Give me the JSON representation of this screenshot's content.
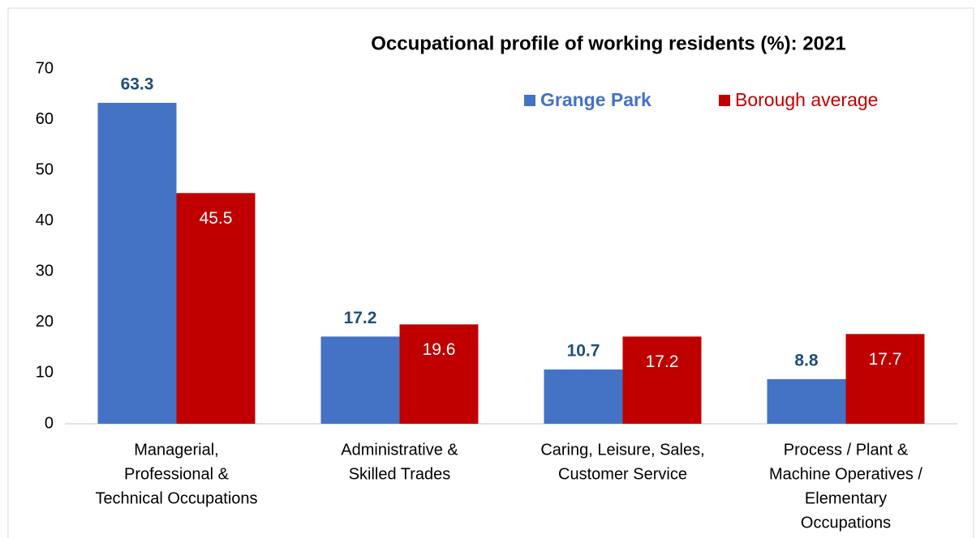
{
  "chart_data": {
    "type": "bar",
    "title": "Occupational profile of working residents (%):  2021",
    "categories": [
      [
        "Managerial,",
        "Professional &",
        "Technical Occupations"
      ],
      [
        "Administrative &",
        "Skilled Trades"
      ],
      [
        "Caring, Leisure, Sales,",
        "Customer Service"
      ],
      [
        "Process / Plant &",
        "Machine Operatives /",
        "Elementary",
        "Occupations"
      ]
    ],
    "series": [
      {
        "name": "Grange Park",
        "color": "#4472c4",
        "values": [
          63.3,
          17.2,
          10.7,
          8.8
        ]
      },
      {
        "name": "Borough average",
        "color": "#c00000",
        "values": [
          45.5,
          19.6,
          17.2,
          17.7
        ]
      }
    ],
    "ylim": [
      0,
      70
    ],
    "yticks": [
      0,
      10,
      20,
      30,
      40,
      50,
      60,
      70
    ],
    "grid": false,
    "legend": "top-right"
  }
}
